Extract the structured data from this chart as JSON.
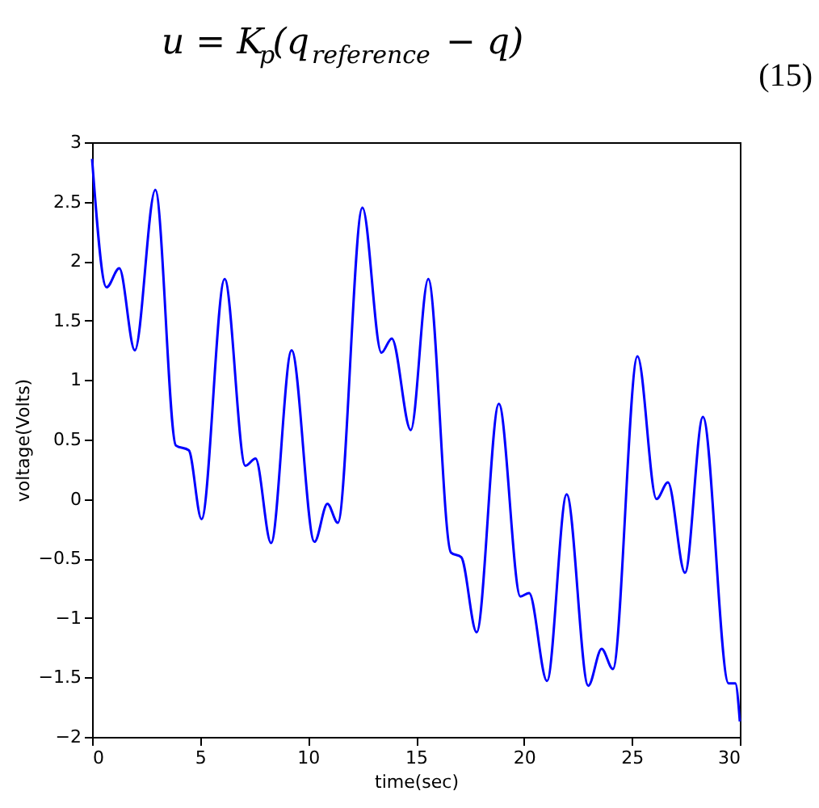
{
  "chart_data": {
    "type": "line",
    "xlabel": "time(sec)",
    "ylabel": "voltage(Volts)",
    "annotations": [
      "u = K$_{p}$(q$_{reference}$ − q)",
      "(15)"
    ],
    "series": [
      {
        "color": "#0000ff",
        "x": [
          0,
          0.67,
          1.26,
          1.98,
          2.93,
          3.88,
          4.48,
          5.07,
          6.14,
          7.1,
          7.57,
          8.29,
          9.24,
          10.3,
          10.9,
          11.38,
          12.52,
          13.4,
          13.88,
          14.76,
          15.57,
          16.62,
          17.1,
          17.81,
          18.84,
          19.84,
          20.24,
          21.07,
          21.98,
          22.98,
          23.6,
          24.12,
          25.26,
          26.14,
          26.67,
          27.46,
          28.29,
          29.48,
          29.79,
          30
        ],
        "values": [
          2.86,
          1.78,
          1.94,
          1.25,
          2.6,
          0.45,
          0.41,
          -0.17,
          1.85,
          0.28,
          0.34,
          -0.37,
          1.25,
          -0.36,
          -0.04,
          -0.2,
          2.45,
          1.23,
          1.35,
          0.58,
          1.85,
          -0.45,
          -0.49,
          -1.12,
          0.8,
          -0.82,
          -0.79,
          -1.53,
          0.04,
          -1.57,
          -1.26,
          -1.43,
          1.2,
          0.0,
          0.14,
          -0.62,
          0.69,
          -1.55,
          -1.55,
          -1.87
        ]
      }
    ],
    "xlim": [
      0,
      30
    ],
    "xticks": [
      0,
      5,
      10,
      15,
      20,
      25,
      30
    ],
    "ylim": [
      -2,
      3
    ],
    "yticks": [
      -2,
      -1.5,
      -1,
      -0.5,
      0,
      0.5,
      1,
      1.5,
      2,
      2.5,
      3
    ],
    "grid": false,
    "line_style": "solid",
    "marker": "none"
  }
}
